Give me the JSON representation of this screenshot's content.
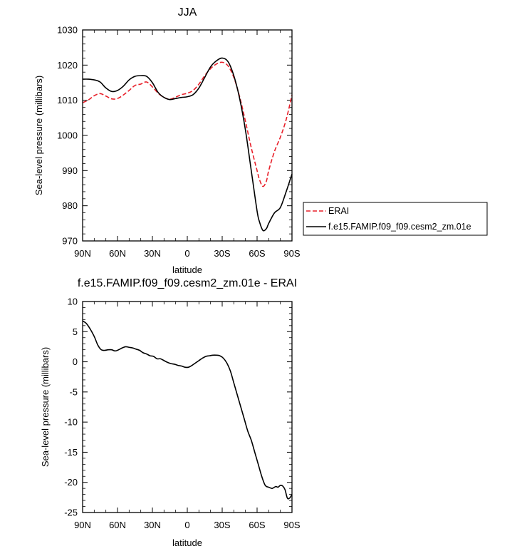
{
  "chart_data": [
    {
      "type": "line",
      "title": "JJA",
      "xlabel": "latitude",
      "ylabel": "Sea-level pressure (millibars)",
      "xlim": [
        90,
        -90
      ],
      "ylim": [
        970,
        1030
      ],
      "x_ticks": [
        90,
        60,
        30,
        0,
        -30,
        -60,
        -90
      ],
      "x_tick_labels": [
        "90N",
        "60N",
        "30N",
        "0",
        "30S",
        "60S",
        "90S"
      ],
      "y_ticks": [
        970,
        980,
        990,
        1000,
        1010,
        1020,
        1030
      ],
      "y_tick_labels": [
        "970",
        "980",
        "990",
        "1000",
        "1010",
        "1020",
        "1030"
      ],
      "legend_position": "right",
      "series": [
        {
          "name": "ERAI",
          "color": "#e8202a",
          "dash": "dashed",
          "x": [
            90,
            85,
            80,
            75,
            70,
            65,
            60,
            55,
            50,
            45,
            40,
            35,
            30,
            25,
            20,
            15,
            10,
            5,
            0,
            -5,
            -10,
            -15,
            -20,
            -25,
            -30,
            -35,
            -40,
            -45,
            -50,
            -55,
            -60,
            -62,
            -65,
            -68,
            -70,
            -75,
            -80,
            -85,
            -90
          ],
          "y": [
            1009.3,
            1010.1,
            1011.3,
            1011.9,
            1011.2,
            1010.4,
            1010.5,
            1011.5,
            1012.8,
            1014.2,
            1014.6,
            1015.2,
            1013.8,
            1012.0,
            1010.8,
            1010.3,
            1010.9,
            1011.6,
            1012.0,
            1012.8,
            1014.6,
            1017.0,
            1019.0,
            1020.3,
            1020.8,
            1019.8,
            1016.5,
            1011.0,
            1004.0,
            996.5,
            990.0,
            987.5,
            985.5,
            987.0,
            990.0,
            995.5,
            999.5,
            1004.5,
            1011.5
          ]
        },
        {
          "name": "f.e15.FAMIP.f09_f09.cesm2_zm.01e",
          "color": "#000000",
          "dash": "solid",
          "x": [
            90,
            85,
            80,
            75,
            70,
            65,
            60,
            55,
            50,
            45,
            40,
            35,
            30,
            25,
            20,
            15,
            10,
            5,
            0,
            -5,
            -10,
            -15,
            -20,
            -25,
            -30,
            -35,
            -40,
            -45,
            -50,
            -55,
            -60,
            -62,
            -65,
            -68,
            -70,
            -75,
            -80,
            -85,
            -90
          ],
          "y": [
            1016.0,
            1016.0,
            1015.8,
            1015.2,
            1013.5,
            1012.5,
            1012.8,
            1014.0,
            1015.8,
            1016.8,
            1017.0,
            1016.8,
            1015.0,
            1012.2,
            1010.8,
            1010.2,
            1010.5,
            1010.8,
            1011.0,
            1011.6,
            1013.5,
            1016.5,
            1019.5,
            1021.2,
            1022.0,
            1021.0,
            1017.0,
            1010.5,
            1001.5,
            990.0,
            978.5,
            975.5,
            973.0,
            973.5,
            975.0,
            978.0,
            979.5,
            984.0,
            989.0
          ]
        }
      ]
    },
    {
      "type": "line",
      "title": "f.e15.FAMIP.f09_f09.cesm2_zm.01e - ERAI",
      "xlabel": "latitude",
      "ylabel": "Sea-level pressure (millibars)",
      "xlim": [
        90,
        -90
      ],
      "ylim": [
        -25,
        10
      ],
      "x_ticks": [
        90,
        60,
        30,
        0,
        -30,
        -60,
        -90
      ],
      "x_tick_labels": [
        "90N",
        "60N",
        "30N",
        "0",
        "30S",
        "60S",
        "90S"
      ],
      "y_ticks": [
        -25,
        -20,
        -15,
        -10,
        -5,
        0,
        5,
        10
      ],
      "y_tick_labels": [
        "-25",
        "-20",
        "-15",
        "-10",
        "-5",
        "0",
        "5",
        "10"
      ],
      "series": [
        {
          "color": "#000000",
          "dash": "solid",
          "x": [
            90,
            87,
            84,
            80,
            77,
            74,
            71,
            68,
            65,
            62,
            59,
            56,
            53,
            50,
            47,
            44,
            41,
            38,
            35,
            32,
            29,
            26,
            23,
            20,
            17,
            14,
            11,
            8,
            5,
            2,
            -1,
            -4,
            -7,
            -10,
            -13,
            -16,
            -19,
            -22,
            -25,
            -28,
            -31,
            -34,
            -37,
            -40,
            -43,
            -46,
            -49,
            -52,
            -55,
            -58,
            -61,
            -64,
            -67,
            -70,
            -73,
            -76,
            -78,
            -80,
            -82,
            -84,
            -86,
            -88,
            -90
          ],
          "y": [
            6.8,
            6.4,
            5.6,
            4.2,
            2.8,
            2.0,
            1.9,
            2.0,
            2.0,
            1.8,
            2.0,
            2.3,
            2.5,
            2.4,
            2.3,
            2.1,
            1.9,
            1.5,
            1.3,
            1.0,
            0.9,
            0.5,
            0.5,
            0.2,
            -0.1,
            -0.3,
            -0.4,
            -0.6,
            -0.7,
            -0.9,
            -0.9,
            -0.6,
            -0.2,
            0.2,
            0.6,
            0.9,
            1.0,
            1.1,
            1.1,
            1.0,
            0.6,
            -0.2,
            -1.5,
            -3.5,
            -5.5,
            -7.5,
            -9.5,
            -11.5,
            -13.0,
            -15.0,
            -17.0,
            -19.0,
            -20.5,
            -20.8,
            -21.0,
            -20.7,
            -20.8,
            -20.5,
            -20.6,
            -21.2,
            -22.6,
            -22.6,
            -22.0
          ]
        }
      ]
    }
  ]
}
